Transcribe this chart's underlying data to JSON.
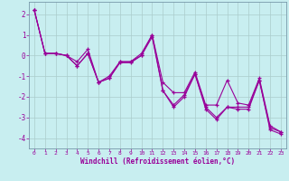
{
  "xlabel": "Windchill (Refroidissement éolien,°C)",
  "bg_color": "#c8eef0",
  "line_color": "#990099",
  "grid_color": "#aacccc",
  "spine_color": "#7799aa",
  "x_values": [
    0,
    1,
    2,
    3,
    4,
    5,
    6,
    7,
    8,
    9,
    10,
    11,
    12,
    13,
    14,
    15,
    16,
    17,
    18,
    19,
    20,
    21,
    22,
    23
  ],
  "y_series1": [
    2.2,
    0.1,
    0.1,
    0.0,
    -0.3,
    0.3,
    -1.3,
    -1.0,
    -0.3,
    -0.3,
    0.1,
    1.0,
    -1.3,
    -1.8,
    -1.8,
    -0.8,
    -2.4,
    -2.4,
    -1.2,
    -2.3,
    -2.4,
    -1.1,
    -3.4,
    -3.7
  ],
  "y_series2": [
    2.2,
    0.1,
    0.1,
    0.0,
    -0.5,
    0.1,
    -1.3,
    -1.1,
    -0.3,
    -0.3,
    0.0,
    1.0,
    -1.7,
    -2.4,
    -1.9,
    -0.9,
    -2.5,
    -3.0,
    -2.5,
    -2.5,
    -2.5,
    -1.2,
    -3.5,
    -3.7
  ],
  "y_series3": [
    2.2,
    0.1,
    0.1,
    0.0,
    -0.5,
    0.1,
    -1.3,
    -1.1,
    -0.35,
    -0.35,
    0.0,
    0.9,
    -1.7,
    -2.5,
    -2.0,
    -0.9,
    -2.6,
    -3.1,
    -2.5,
    -2.6,
    -2.6,
    -1.2,
    -3.6,
    -3.8
  ],
  "ylim": [
    -4.5,
    2.6
  ],
  "xlim": [
    -0.5,
    23.5
  ],
  "yticks": [
    2,
    1,
    0,
    -1,
    -2,
    -3,
    -4
  ],
  "xticks": [
    0,
    1,
    2,
    3,
    4,
    5,
    6,
    7,
    8,
    9,
    10,
    11,
    12,
    13,
    14,
    15,
    16,
    17,
    18,
    19,
    20,
    21,
    22,
    23
  ],
  "marker": "+"
}
